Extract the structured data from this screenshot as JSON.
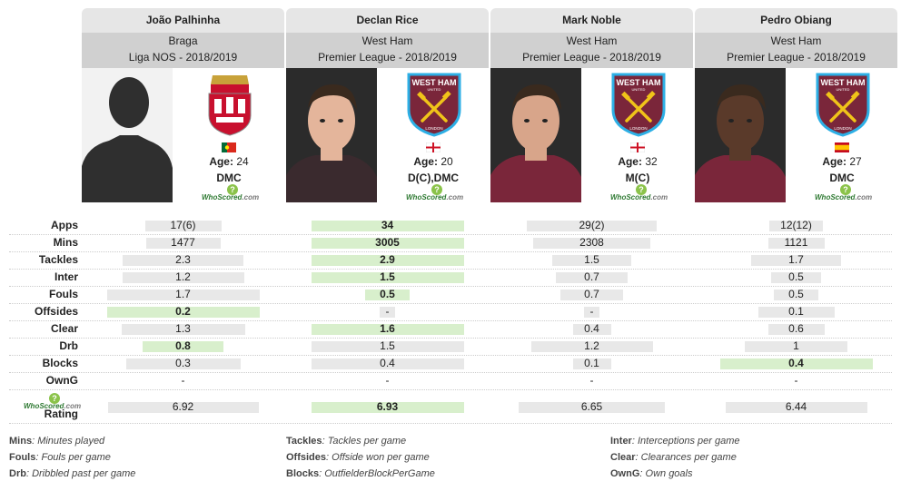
{
  "players": [
    {
      "name": "João Palhinha",
      "team": "Braga",
      "league": "Liga NOS - 2018/2019",
      "age_label": "Age:",
      "age": "24",
      "position": "DMC",
      "badge": "braga-crest-icon",
      "flag": "portugal-flag-icon",
      "photo": "silhouette-avatar"
    },
    {
      "name": "Declan Rice",
      "team": "West Ham",
      "league": "Premier League - 2018/2019",
      "age_label": "Age:",
      "age": "20",
      "position": "D(C),DMC",
      "badge": "west-ham-crest-icon",
      "flag": "england-flag-icon",
      "photo": "player-photo"
    },
    {
      "name": "Mark Noble",
      "team": "West Ham",
      "league": "Premier League - 2018/2019",
      "age_label": "Age:",
      "age": "32",
      "position": "M(C)",
      "badge": "west-ham-crest-icon",
      "flag": "england-flag-icon",
      "photo": "player-photo"
    },
    {
      "name": "Pedro Obiang",
      "team": "West Ham",
      "league": "Premier League - 2018/2019",
      "age_label": "Age:",
      "age": "27",
      "position": "DMC",
      "badge": "west-ham-crest-icon",
      "flag": "spain-flag-icon",
      "photo": "player-photo"
    }
  ],
  "crest_text": {
    "west_ham_top": "WEST HAM",
    "west_ham_sub": "UNITED",
    "west_ham_bottom": "LONDON"
  },
  "whoscored": {
    "name": "WhoScored",
    "dot": ".com"
  },
  "stats": [
    {
      "label": "Apps",
      "values": [
        "17(6)",
        "34",
        "29(2)",
        "12(12)"
      ],
      "fills": [
        0.5,
        1.0,
        0.85,
        0.35
      ],
      "best": 1
    },
    {
      "label": "Mins",
      "values": [
        "1477",
        "3005",
        "2308",
        "1121"
      ],
      "fills": [
        0.49,
        1.0,
        0.77,
        0.37
      ],
      "best": 1
    },
    {
      "label": "Tackles",
      "values": [
        "2.3",
        "2.9",
        "1.5",
        "1.7"
      ],
      "fills": [
        0.79,
        1.0,
        0.52,
        0.59
      ],
      "best": 1
    },
    {
      "label": "Inter",
      "values": [
        "1.2",
        "1.5",
        "0.7",
        "0.5"
      ],
      "fills": [
        0.8,
        1.0,
        0.47,
        0.33
      ],
      "best": 1
    },
    {
      "label": "Fouls",
      "values": [
        "1.7",
        "0.5",
        "0.7",
        "0.5"
      ],
      "fills": [
        1.0,
        0.29,
        0.41,
        0.29
      ],
      "best": 1
    },
    {
      "label": "Offsides",
      "values": [
        "0.2",
        "-",
        "-",
        "0.1"
      ],
      "fills": [
        1.0,
        0.1,
        0.1,
        0.5
      ],
      "best": 0
    },
    {
      "label": "Clear",
      "values": [
        "1.3",
        "1.6",
        "0.4",
        "0.6"
      ],
      "fills": [
        0.81,
        1.0,
        0.25,
        0.37
      ],
      "best": 1
    },
    {
      "label": "Drb",
      "values": [
        "0.8",
        "1.5",
        "1.2",
        "1"
      ],
      "fills": [
        0.53,
        1.0,
        0.8,
        0.67
      ],
      "best": 0
    },
    {
      "label": "Blocks",
      "values": [
        "0.3",
        "0.4",
        "0.1",
        "0.4"
      ],
      "fills": [
        0.75,
        1.0,
        0.25,
        1.0
      ],
      "best": 3
    },
    {
      "label": "OwnG",
      "values": [
        "-",
        "-",
        "-",
        "-"
      ],
      "fills": [
        0,
        0,
        0,
        0
      ],
      "best": -1
    },
    {
      "label": "Rating",
      "values": [
        "6.92",
        "6.93",
        "6.65",
        "6.44"
      ],
      "fills": [
        0.99,
        1.0,
        0.96,
        0.93
      ],
      "best": 1
    }
  ],
  "legend": [
    {
      "key": "Mins",
      "desc": "Minutes played"
    },
    {
      "key": "Tackles",
      "desc": "Tackles per game"
    },
    {
      "key": "Inter",
      "desc": "Interceptions per game"
    },
    {
      "key": "Fouls",
      "desc": "Fouls per game"
    },
    {
      "key": "Offsides",
      "desc": "Offside won per game"
    },
    {
      "key": "Clear",
      "desc": "Clearances per game"
    },
    {
      "key": "Drb",
      "desc": "Dribbled past per game"
    },
    {
      "key": "Blocks",
      "desc": "OutfielderBlockPerGame"
    },
    {
      "key": "OwnG",
      "desc": "Own goals"
    }
  ],
  "colors": {
    "header_light": "#e6e6e6",
    "header_dark": "#d0d0d0",
    "bar": "#e8e8e8",
    "best_bar": "#d8efcc",
    "west_ham_claret": "#7a263a",
    "west_ham_blue": "#2dafe5",
    "braga_red": "#c8102e"
  }
}
